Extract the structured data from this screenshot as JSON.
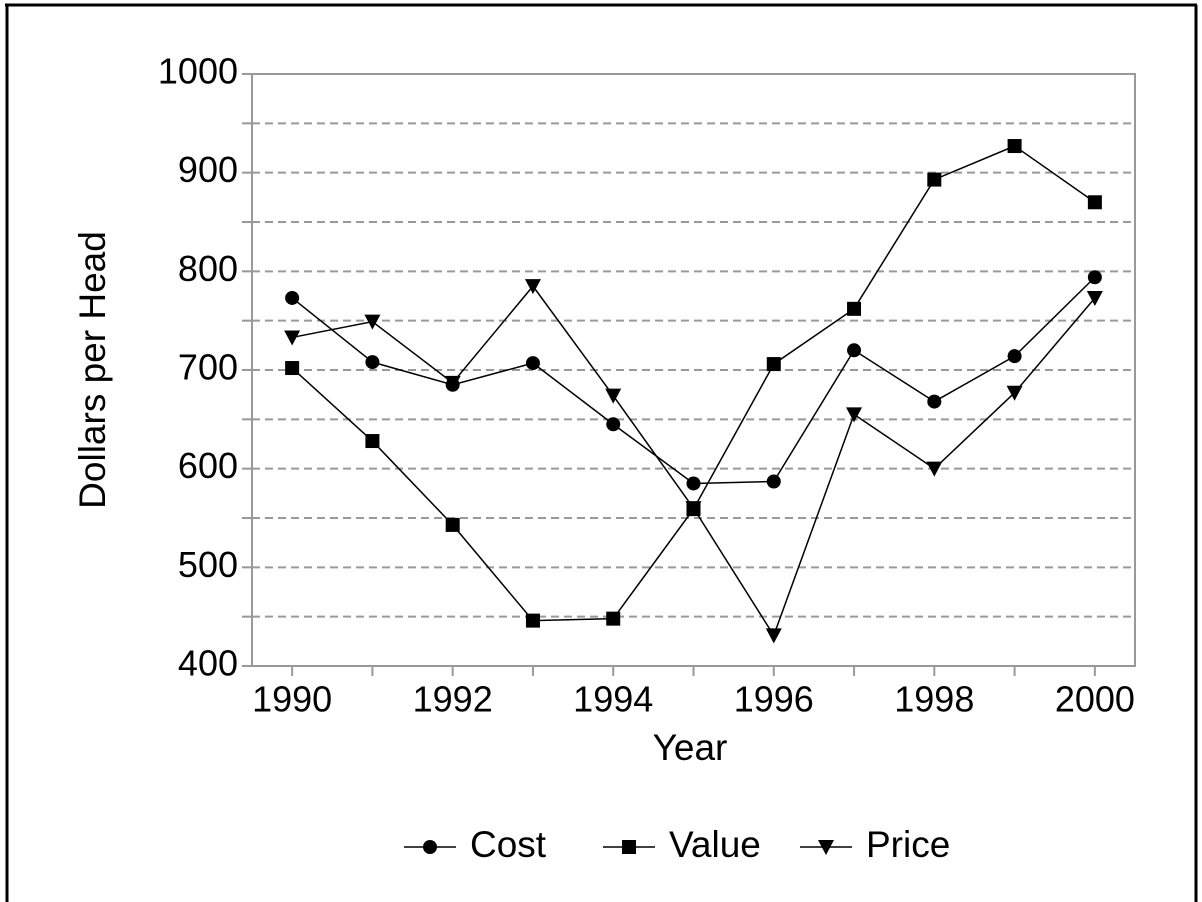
{
  "chart_data": {
    "type": "line",
    "x_label": "Year",
    "y_label": "Dollars per Head",
    "x": [
      1990,
      1991,
      1992,
      1993,
      1994,
      1995,
      1996,
      1997,
      1998,
      1999,
      2000
    ],
    "series": [
      {
        "name": "Cost",
        "color": "#000000",
        "marker": "circle",
        "values": [
          773,
          708,
          685,
          707,
          645,
          585,
          587,
          720,
          668,
          714,
          794
        ]
      },
      {
        "name": "Value",
        "color": "#000000",
        "marker": "square",
        "values": [
          702,
          628,
          543,
          446,
          448,
          559,
          706,
          762,
          893,
          927,
          870
        ]
      },
      {
        "name": "Price",
        "color": "#000000",
        "marker": "triangle-down",
        "values": [
          733,
          749,
          687,
          785,
          674,
          560,
          431,
          655,
          600,
          677,
          773
        ]
      }
    ],
    "xlim": [
      1989.5,
      2000.5
    ],
    "xticks": [
      1990,
      1992,
      1994,
      1996,
      1998,
      2000
    ],
    "xminorticks": [
      1991,
      1993,
      1995,
      1997,
      1999
    ],
    "ylim": [
      400,
      1000
    ],
    "yticks": [
      400,
      500,
      600,
      700,
      800,
      900,
      1000
    ],
    "yminorticks": [
      450,
      550,
      650,
      750,
      850,
      950
    ],
    "grid": true,
    "legend": "bottom"
  }
}
